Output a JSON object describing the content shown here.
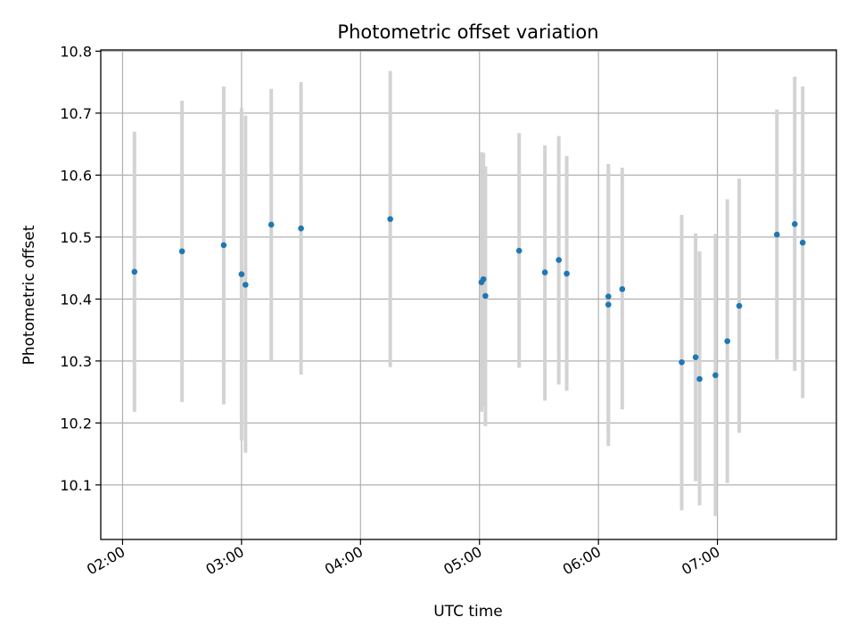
{
  "chart_data": {
    "type": "scatter",
    "title": "Photometric offset variation",
    "xlabel": "UTC time",
    "ylabel": "Photometric offset",
    "xlim": [
      "01:49",
      "08:00"
    ],
    "ylim": [
      10.012,
      10.802
    ],
    "x_ticks": [
      "02:00",
      "03:00",
      "04:00",
      "05:00",
      "06:00",
      "07:00"
    ],
    "y_ticks": [
      10.1,
      10.2,
      10.3,
      10.4,
      10.5,
      10.6,
      10.7,
      10.8
    ],
    "y_tick_labels": [
      "10.1",
      "10.2",
      "10.3",
      "10.4",
      "10.5",
      "10.6",
      "10.7",
      "10.8"
    ],
    "grid": true,
    "point_color": "#1f77b4",
    "errorbar_color": "#d3d3d3",
    "points": [
      {
        "time": "02:06",
        "value": 10.444,
        "low": 10.218,
        "high": 10.67
      },
      {
        "time": "02:30",
        "value": 10.477,
        "low": 10.234,
        "high": 10.72
      },
      {
        "time": "02:51",
        "value": 10.487,
        "low": 10.23,
        "high": 10.743
      },
      {
        "time": "03:00",
        "value": 10.44,
        "low": 10.172,
        "high": 10.708
      },
      {
        "time": "03:02",
        "value": 10.423,
        "low": 10.152,
        "high": 10.696
      },
      {
        "time": "03:15",
        "value": 10.52,
        "low": 10.3,
        "high": 10.739
      },
      {
        "time": "03:30",
        "value": 10.514,
        "low": 10.278,
        "high": 10.75
      },
      {
        "time": "04:15",
        "value": 10.529,
        "low": 10.29,
        "high": 10.768
      },
      {
        "time": "05:01",
        "value": 10.427,
        "low": 10.218,
        "high": 10.637
      },
      {
        "time": "05:02",
        "value": 10.432,
        "low": 10.226,
        "high": 10.636
      },
      {
        "time": "05:03",
        "value": 10.405,
        "low": 10.195,
        "high": 10.614
      },
      {
        "time": "05:20",
        "value": 10.478,
        "low": 10.289,
        "high": 10.668
      },
      {
        "time": "05:33",
        "value": 10.443,
        "low": 10.236,
        "high": 10.648
      },
      {
        "time": "05:40",
        "value": 10.463,
        "low": 10.262,
        "high": 10.663
      },
      {
        "time": "05:44",
        "value": 10.441,
        "low": 10.252,
        "high": 10.631
      },
      {
        "time": "06:05",
        "value": 10.391,
        "low": 10.163,
        "high": 10.618
      },
      {
        "time": "06:05",
        "value": 10.404,
        "low": 10.19,
        "high": 10.617
      },
      {
        "time": "06:12",
        "value": 10.416,
        "low": 10.222,
        "high": 10.612
      },
      {
        "time": "06:42",
        "value": 10.298,
        "low": 10.059,
        "high": 10.536
      },
      {
        "time": "06:49",
        "value": 10.306,
        "low": 10.106,
        "high": 10.506
      },
      {
        "time": "06:51",
        "value": 10.271,
        "low": 10.067,
        "high": 10.477
      },
      {
        "time": "06:59",
        "value": 10.277,
        "low": 10.05,
        "high": 10.505
      },
      {
        "time": "07:05",
        "value": 10.332,
        "low": 10.103,
        "high": 10.561
      },
      {
        "time": "07:11",
        "value": 10.389,
        "low": 10.184,
        "high": 10.594
      },
      {
        "time": "07:30",
        "value": 10.504,
        "low": 10.302,
        "high": 10.706
      },
      {
        "time": "07:39",
        "value": 10.521,
        "low": 10.284,
        "high": 10.759
      },
      {
        "time": "07:43",
        "value": 10.491,
        "low": 10.24,
        "high": 10.743
      }
    ]
  }
}
